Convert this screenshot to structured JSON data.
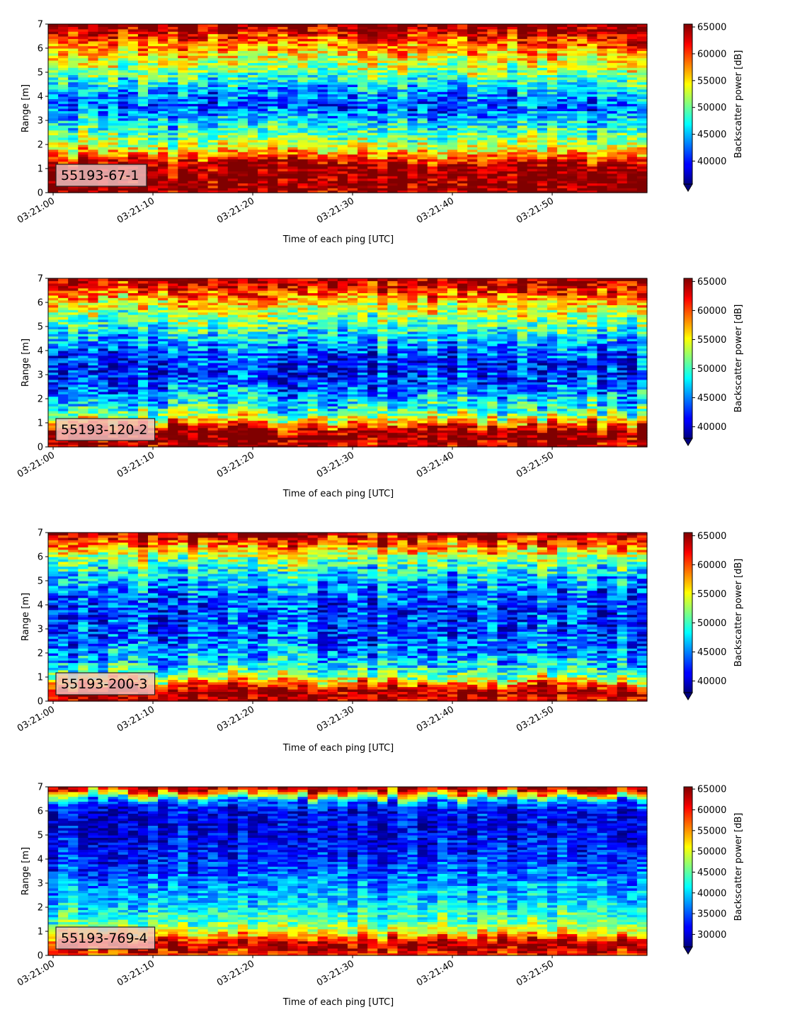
{
  "chart_data": [
    {
      "type": "heatmap",
      "badge": "55193-67-1",
      "xlabel": "Time of each ping [UTC]",
      "ylabel": "Range [m]",
      "x_ticks": [
        "03:21:00",
        "03:21:10",
        "03:21:20",
        "03:21:30",
        "03:21:40",
        "03:21:50"
      ],
      "x_range": [
        "03:20:59.5",
        "03:21:59.5"
      ],
      "y_ticks": [
        0,
        1,
        2,
        3,
        4,
        5,
        6,
        7
      ],
      "ylim": [
        0,
        7
      ],
      "colorbar": {
        "label": "Backscatter power [dB]",
        "min": 35700,
        "max": 65535,
        "ticks": [
          40000,
          45000,
          50000,
          55000,
          60000,
          65000
        ],
        "colormap": "jet",
        "extend": "min"
      },
      "profile": [
        {
          "range": 0.1,
          "value": 64500
        },
        {
          "range": 0.5,
          "value": 65500
        },
        {
          "range": 1.1,
          "value": 65000
        },
        {
          "range": 1.4,
          "value": 60000
        },
        {
          "range": 1.8,
          "value": 54000
        },
        {
          "range": 2.3,
          "value": 50000
        },
        {
          "range": 2.9,
          "value": 46000
        },
        {
          "range": 3.6,
          "value": 41000
        },
        {
          "range": 4.2,
          "value": 44000
        },
        {
          "range": 4.8,
          "value": 49000
        },
        {
          "range": 5.4,
          "value": 53000
        },
        {
          "range": 6.0,
          "value": 57000
        },
        {
          "range": 6.5,
          "value": 61000
        },
        {
          "range": 6.8,
          "value": 64000
        },
        {
          "range": 7.0,
          "value": 65500
        }
      ]
    },
    {
      "type": "heatmap",
      "badge": "55193-120-2",
      "xlabel": "Time of each ping [UTC]",
      "ylabel": "Range [m]",
      "x_ticks": [
        "03:21:00",
        "03:21:10",
        "03:21:20",
        "03:21:30",
        "03:21:40",
        "03:21:50"
      ],
      "x_range": [
        "03:20:59.5",
        "03:21:59.5"
      ],
      "y_ticks": [
        0,
        1,
        2,
        3,
        4,
        5,
        6,
        7
      ],
      "ylim": [
        0,
        7
      ],
      "colorbar": {
        "label": "Backscatter power [dB]",
        "min": 38000,
        "max": 65535,
        "ticks": [
          40000,
          45000,
          50000,
          55000,
          60000,
          65000
        ],
        "colormap": "jet",
        "extend": "min"
      },
      "profile": [
        {
          "range": 0.1,
          "value": 64500
        },
        {
          "range": 0.5,
          "value": 65500
        },
        {
          "range": 0.8,
          "value": 63000
        },
        {
          "range": 1.1,
          "value": 56000
        },
        {
          "range": 1.6,
          "value": 49000
        },
        {
          "range": 2.3,
          "value": 45000
        },
        {
          "range": 3.0,
          "value": 42000
        },
        {
          "range": 3.8,
          "value": 43000
        },
        {
          "range": 4.5,
          "value": 47000
        },
        {
          "range": 5.2,
          "value": 51000
        },
        {
          "range": 5.8,
          "value": 55000
        },
        {
          "range": 6.4,
          "value": 60000
        },
        {
          "range": 6.8,
          "value": 64000
        },
        {
          "range": 7.0,
          "value": 65500
        }
      ]
    },
    {
      "type": "heatmap",
      "badge": "55193-200-3",
      "xlabel": "Time of each ping [UTC]",
      "ylabel": "Range [m]",
      "x_ticks": [
        "03:21:00",
        "03:21:10",
        "03:21:20",
        "03:21:30",
        "03:21:40",
        "03:21:50"
      ],
      "x_range": [
        "03:20:59.5",
        "03:21:59.5"
      ],
      "y_ticks": [
        0,
        1,
        2,
        3,
        4,
        5,
        6,
        7
      ],
      "ylim": [
        0,
        7
      ],
      "colorbar": {
        "label": "Backscatter power [dB]",
        "min": 38000,
        "max": 65535,
        "ticks": [
          40000,
          45000,
          50000,
          55000,
          60000,
          65000
        ],
        "colormap": "jet",
        "extend": "min"
      },
      "profile": [
        {
          "range": 0.1,
          "value": 64000
        },
        {
          "range": 0.4,
          "value": 65500
        },
        {
          "range": 0.7,
          "value": 60000
        },
        {
          "range": 1.0,
          "value": 53000
        },
        {
          "range": 1.5,
          "value": 48000
        },
        {
          "range": 2.2,
          "value": 45000
        },
        {
          "range": 3.0,
          "value": 43500
        },
        {
          "range": 3.8,
          "value": 43000
        },
        {
          "range": 4.6,
          "value": 45000
        },
        {
          "range": 5.3,
          "value": 48000
        },
        {
          "range": 5.9,
          "value": 52000
        },
        {
          "range": 6.4,
          "value": 58000
        },
        {
          "range": 6.8,
          "value": 63000
        },
        {
          "range": 7.0,
          "value": 65500
        }
      ]
    },
    {
      "type": "heatmap",
      "badge": "55193-769-4",
      "xlabel": "Time of each ping [UTC]",
      "ylabel": "Range [m]",
      "x_ticks": [
        "03:21:00",
        "03:21:10",
        "03:21:20",
        "03:21:30",
        "03:21:40",
        "03:21:50"
      ],
      "x_range": [
        "03:20:59.5",
        "03:21:59.5"
      ],
      "y_ticks": [
        0,
        1,
        2,
        3,
        4,
        5,
        6,
        7
      ],
      "ylim": [
        0,
        7
      ],
      "colorbar": {
        "label": "Backscatter power [dB]",
        "min": 27000,
        "max": 65535,
        "ticks": [
          30000,
          35000,
          40000,
          45000,
          50000,
          55000,
          60000,
          65000
        ],
        "colormap": "jet",
        "extend": "min"
      },
      "profile": [
        {
          "range": 0.1,
          "value": 58000
        },
        {
          "range": 0.3,
          "value": 65500
        },
        {
          "range": 0.6,
          "value": 62000
        },
        {
          "range": 0.9,
          "value": 52000
        },
        {
          "range": 1.4,
          "value": 45000
        },
        {
          "range": 2.2,
          "value": 40000
        },
        {
          "range": 3.0,
          "value": 37000
        },
        {
          "range": 3.8,
          "value": 34000
        },
        {
          "range": 4.6,
          "value": 32000
        },
        {
          "range": 5.4,
          "value": 31000
        },
        {
          "range": 6.0,
          "value": 31500
        },
        {
          "range": 6.4,
          "value": 36000
        },
        {
          "range": 6.7,
          "value": 52000
        },
        {
          "range": 6.9,
          "value": 62000
        },
        {
          "range": 7.0,
          "value": 65000
        }
      ]
    }
  ]
}
